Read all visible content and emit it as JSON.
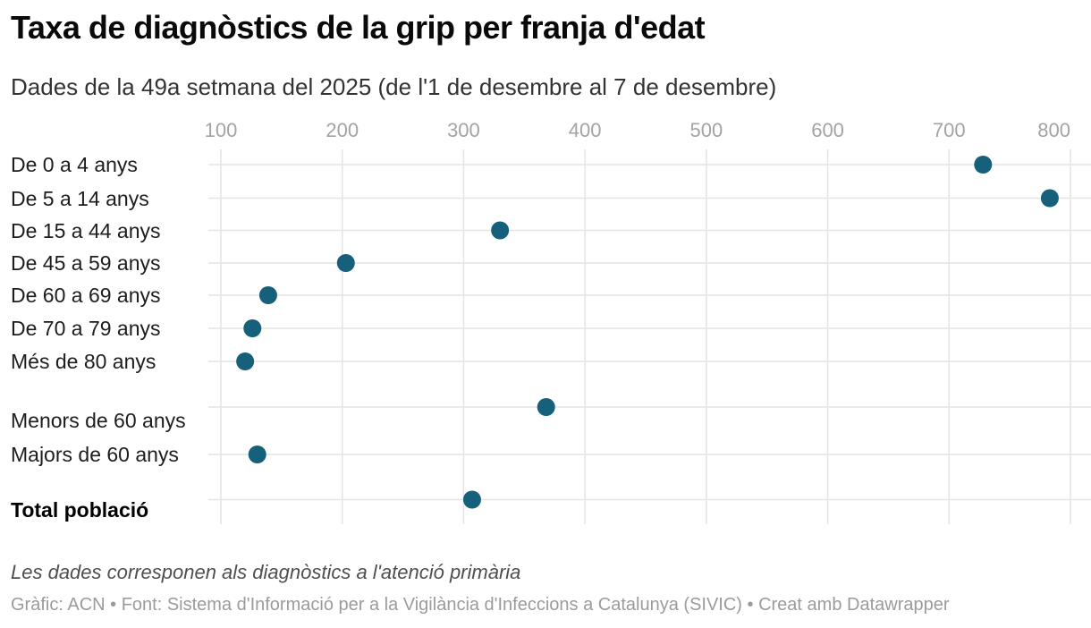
{
  "header": {
    "title": "Taxa de diagnòstics de la grip per franja d'edat",
    "subtitle": "Dades de la 49a setmana del 2025 (de l'1 de desembre al 7 de desembre)"
  },
  "chart_data": {
    "type": "scatter",
    "variant": "dot-plot",
    "title": "Taxa de diagnòstics de la grip per franja d'edat",
    "subtitle": "Dades de la 49a setmana del 2025 (de l'1 de desembre al 7 de desembre)",
    "categories": [
      "De 0 a 4 anys",
      "De 5 a 14 anys",
      "De 15 a 44 anys",
      "De 45 a 59 anys",
      "De 60 a 69 anys",
      "De 70 a 79 anys",
      "Més de 80 anys",
      "Menors de 60 anys",
      "Majors de 60 anys",
      "Total població"
    ],
    "values": [
      728,
      783,
      330,
      203,
      139,
      126,
      120,
      368,
      130,
      307
    ],
    "bold_flags": [
      false,
      false,
      false,
      false,
      false,
      false,
      false,
      false,
      false,
      true
    ],
    "groups": [
      [
        0,
        1,
        2,
        3,
        4,
        5,
        6
      ],
      [
        7,
        8
      ],
      [
        9
      ]
    ],
    "x_ticks": [
      100,
      200,
      300,
      400,
      500,
      600,
      700,
      800
    ],
    "x_tick_labels": [
      "100",
      "200",
      "300",
      "400",
      "500",
      "600",
      "700",
      "800"
    ],
    "xlim_ticks": [
      100,
      800
    ],
    "grid": true,
    "legend_position": "none",
    "dot_color": "#17607b",
    "grid_color": "#e4e4e4",
    "tick_color": "#a3a3a3"
  },
  "footer": {
    "note": "Les dades corresponen als diagnòstics a l'atenció primària",
    "byline": "Gràfic: ACN • Font: Sistema d'Informació per a la Vigilància d'Infeccions a Catalunya (SIVIC) • Creat amb Datawrapper"
  }
}
